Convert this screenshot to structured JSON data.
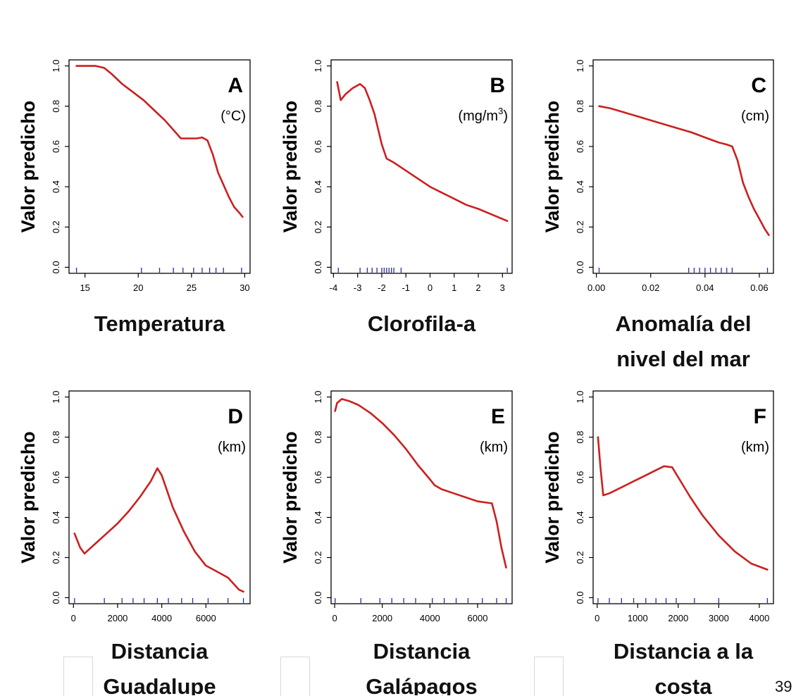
{
  "page": {
    "number": "39"
  },
  "chart_data": [
    {
      "type": "line",
      "panel_letter": "A",
      "unit": "(°C)",
      "xlabel": [
        "Temperatura"
      ],
      "ylabel": "Valor predicho",
      "xlim": [
        13.5,
        30.5
      ],
      "ylim": [
        -0.03,
        1.03
      ],
      "xticks": [
        15,
        20,
        25,
        30
      ],
      "xtick_labels": [
        "15",
        "20",
        "25",
        "30"
      ],
      "yticks": [
        0,
        0.2,
        0.4,
        0.6,
        0.8,
        1.0
      ],
      "ytick_labels": [
        "0.0",
        "0.2",
        "0.4",
        "0.6",
        "0.8",
        "1.0"
      ],
      "line_color": "#cc1f1f",
      "rug_color": "#2a2aa0",
      "series": [
        {
          "x": [
            14.2,
            15,
            16,
            16.8,
            17.5,
            18.5,
            19.5,
            20.5,
            21.5,
            22.5,
            23.5,
            24,
            24.5,
            25,
            25.5,
            26,
            26.5,
            27,
            27.5,
            28,
            28.5,
            29,
            29.5,
            29.8
          ],
          "y": [
            1.0,
            1.0,
            1.0,
            0.99,
            0.96,
            0.91,
            0.87,
            0.83,
            0.78,
            0.73,
            0.67,
            0.64,
            0.64,
            0.64,
            0.64,
            0.645,
            0.63,
            0.56,
            0.47,
            0.41,
            0.35,
            0.3,
            0.27,
            0.25
          ]
        }
      ],
      "rug": [
        14.2,
        20.3,
        22,
        23.3,
        24.2,
        25.2,
        26,
        26.7,
        27.3,
        28,
        29.7
      ]
    },
    {
      "type": "line",
      "panel_letter": "B",
      "unit": "(mg/m",
      "unit_sup": "3",
      "unit_end": ")",
      "xlabel": [
        "Clorofila-a"
      ],
      "ylabel": "Valor predicho",
      "xlim": [
        -4.1,
        3.4
      ],
      "ylim": [
        -0.03,
        1.03
      ],
      "xticks": [
        -4,
        -3,
        -2,
        -1,
        0,
        1,
        2,
        3
      ],
      "xtick_labels": [
        "-4",
        "-3",
        "-2",
        "-1",
        "0",
        "1",
        "2",
        "3"
      ],
      "yticks": [
        0,
        0.2,
        0.4,
        0.6,
        0.8,
        1.0
      ],
      "ytick_labels": [
        "0.0",
        "0.2",
        "0.4",
        "0.6",
        "0.8",
        "1.0"
      ],
      "line_color": "#cc1f1f",
      "rug_color": "#2a2aa0",
      "series": [
        {
          "x": [
            -3.85,
            -3.7,
            -3.5,
            -3.2,
            -2.9,
            -2.7,
            -2.5,
            -2.3,
            -2.0,
            -1.8,
            -1.5,
            -1.0,
            -0.5,
            0,
            0.5,
            1,
            1.5,
            2,
            2.5,
            3,
            3.2
          ],
          "y": [
            0.92,
            0.83,
            0.86,
            0.89,
            0.91,
            0.89,
            0.83,
            0.76,
            0.61,
            0.54,
            0.52,
            0.48,
            0.44,
            0.4,
            0.37,
            0.34,
            0.31,
            0.29,
            0.265,
            0.24,
            0.23
          ]
        }
      ],
      "rug": [
        -3.8,
        -2.9,
        -2.6,
        -2.4,
        -2.2,
        -2.0,
        -1.9,
        -1.8,
        -1.7,
        -1.6,
        -1.5,
        -1.2,
        3.2
      ]
    },
    {
      "type": "line",
      "panel_letter": "C",
      "unit": "(cm)",
      "xlabel": [
        "Anomalía del",
        "nivel del mar"
      ],
      "ylabel": "Valor predicho",
      "xlim": [
        -0.0012,
        0.0652
      ],
      "ylim": [
        -0.03,
        1.03
      ],
      "xticks": [
        0,
        0.02,
        0.04,
        0.06
      ],
      "xtick_labels": [
        "0.00",
        "0.02",
        "0.04",
        "0.06"
      ],
      "yticks": [
        0,
        0.2,
        0.4,
        0.6,
        0.8,
        1.0
      ],
      "ytick_labels": [
        "0.0",
        "0.2",
        "0.4",
        "0.6",
        "0.8",
        "1.0"
      ],
      "line_color": "#cc1f1f",
      "rug_color": "#2a2aa0",
      "series": [
        {
          "x": [
            0.001,
            0.005,
            0.01,
            0.015,
            0.02,
            0.025,
            0.03,
            0.035,
            0.04,
            0.045,
            0.048,
            0.05,
            0.052,
            0.054,
            0.056,
            0.058,
            0.06,
            0.062,
            0.0635
          ],
          "y": [
            0.8,
            0.79,
            0.77,
            0.75,
            0.73,
            0.71,
            0.69,
            0.67,
            0.645,
            0.62,
            0.61,
            0.6,
            0.53,
            0.42,
            0.35,
            0.29,
            0.24,
            0.19,
            0.16
          ]
        }
      ],
      "rug": [
        0.001,
        0.034,
        0.036,
        0.038,
        0.04,
        0.042,
        0.044,
        0.046,
        0.048,
        0.05,
        0.063
      ]
    },
    {
      "type": "line",
      "panel_letter": "D",
      "unit": "(km)",
      "xlabel": [
        "Distancia",
        "Guadalupe"
      ],
      "ylabel": "Valor predicho",
      "xlim": [
        -200,
        8000
      ],
      "ylim": [
        -0.03,
        1.03
      ],
      "xticks": [
        0,
        2000,
        4000,
        6000
      ],
      "xtick_labels": [
        "0",
        "2000",
        "4000",
        "6000"
      ],
      "yticks": [
        0,
        0.2,
        0.4,
        0.6,
        0.8,
        1.0
      ],
      "ytick_labels": [
        "0.0",
        "0.2",
        "0.4",
        "0.6",
        "0.8",
        "1.0"
      ],
      "line_color": "#cc1f1f",
      "rug_color": "#2a2aa0",
      "series": [
        {
          "x": [
            50,
            300,
            500,
            1000,
            1500,
            2000,
            2500,
            3000,
            3500,
            3800,
            4000,
            4500,
            5000,
            5500,
            6000,
            6500,
            7000,
            7500,
            7700
          ],
          "y": [
            0.32,
            0.25,
            0.22,
            0.27,
            0.32,
            0.37,
            0.43,
            0.5,
            0.58,
            0.645,
            0.61,
            0.45,
            0.33,
            0.23,
            0.16,
            0.13,
            0.1,
            0.04,
            0.03
          ]
        }
      ],
      "rug": [
        50,
        1400,
        2200,
        2700,
        3200,
        3800,
        4300,
        4900,
        5400,
        6100,
        7000,
        7700
      ]
    },
    {
      "type": "line",
      "panel_letter": "E",
      "unit": "(km)",
      "xlabel": [
        "Distancia",
        "Galápagos"
      ],
      "ylabel": "Valor predicho",
      "xlim": [
        -150,
        7450
      ],
      "ylim": [
        -0.03,
        1.03
      ],
      "xticks": [
        0,
        2000,
        4000,
        6000
      ],
      "xtick_labels": [
        "0",
        "2000",
        "4000",
        "6000"
      ],
      "yticks": [
        0,
        0.2,
        0.4,
        0.6,
        0.8,
        1.0
      ],
      "ytick_labels": [
        "0.0",
        "0.2",
        "0.4",
        "0.6",
        "0.8",
        "1.0"
      ],
      "line_color": "#cc1f1f",
      "rug_color": "#2a2aa0",
      "series": [
        {
          "x": [
            20,
            100,
            300,
            600,
            1000,
            1500,
            2000,
            2500,
            3000,
            3500,
            4000,
            4200,
            4500,
            5000,
            5500,
            6000,
            6600,
            6800,
            7000,
            7200
          ],
          "y": [
            0.93,
            0.97,
            0.99,
            0.98,
            0.96,
            0.92,
            0.87,
            0.81,
            0.74,
            0.66,
            0.59,
            0.56,
            0.54,
            0.52,
            0.5,
            0.48,
            0.47,
            0.38,
            0.25,
            0.15
          ]
        }
      ],
      "rug": [
        20,
        1100,
        1900,
        2400,
        2900,
        3400,
        4100,
        4600,
        5100,
        5600,
        6200,
        6800,
        7200
      ]
    },
    {
      "type": "line",
      "panel_letter": "F",
      "unit": "(km)",
      "xlabel": [
        "Distancia a la",
        "costa"
      ],
      "ylabel": "Valor predicho",
      "xlim": [
        -100,
        4350
      ],
      "ylim": [
        -0.03,
        1.03
      ],
      "xticks": [
        0,
        1000,
        2000,
        3000,
        4000
      ],
      "xtick_labels": [
        "0",
        "1000",
        "2000",
        "3000",
        "4000"
      ],
      "yticks": [
        0,
        0.2,
        0.4,
        0.6,
        0.8,
        1.0
      ],
      "ytick_labels": [
        "0.0",
        "0.2",
        "0.4",
        "0.6",
        "0.8",
        "1.0"
      ],
      "line_color": "#cc1f1f",
      "rug_color": "#2a2aa0",
      "series": [
        {
          "x": [
            20,
            80,
            150,
            300,
            600,
            900,
            1200,
            1500,
            1650,
            1850,
            2000,
            2300,
            2600,
            3000,
            3400,
            3800,
            4200
          ],
          "y": [
            0.8,
            0.65,
            0.51,
            0.52,
            0.55,
            0.58,
            0.61,
            0.64,
            0.655,
            0.65,
            0.6,
            0.5,
            0.41,
            0.31,
            0.23,
            0.17,
            0.14
          ]
        }
      ],
      "rug": [
        20,
        300,
        600,
        900,
        1200,
        1450,
        1700,
        1950,
        2400,
        3000,
        4200
      ]
    }
  ]
}
